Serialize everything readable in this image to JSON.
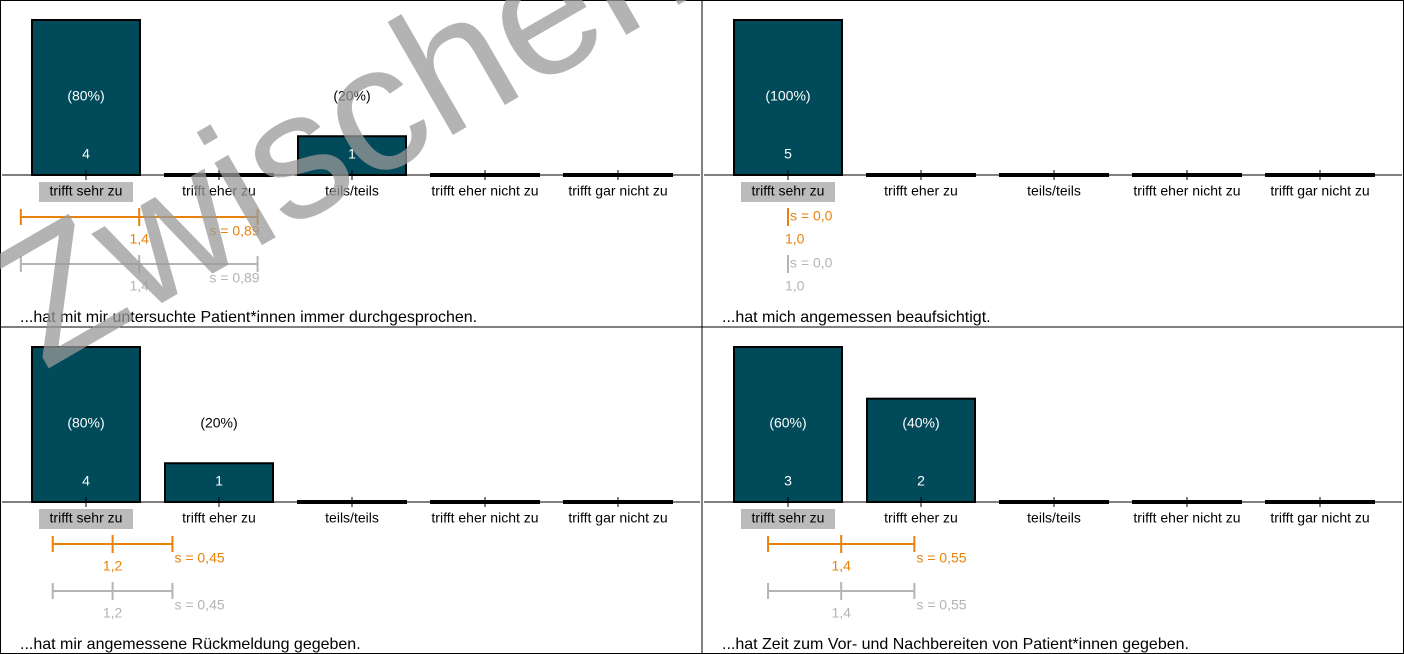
{
  "watermark": "Zwischen",
  "chart_data": [
    {
      "type": "bar",
      "title": "...hat mit mir untersuchte Patient*innen immer durchgesprochen.",
      "categories": [
        "trifft sehr zu",
        "trifft eher zu",
        "teils/teils",
        "trifft eher nicht zu",
        "trifft gar nicht zu"
      ],
      "values": [
        4,
        0,
        1,
        0,
        0
      ],
      "percent_labels": [
        "(80%)",
        null,
        "(20%)",
        null,
        null
      ],
      "ylim": [
        0,
        4
      ],
      "color": "#004a5a",
      "mean": {
        "value": 1.4,
        "label": "1,4"
      },
      "sd": {
        "value": 0.89,
        "label": "s = 0,89"
      },
      "comparison_mean": {
        "value": 1.4,
        "label": "1,4"
      },
      "comparison_sd": {
        "value": 0.89,
        "label": "s = 0,89"
      }
    },
    {
      "type": "bar",
      "title": "...hat mich angemessen beaufsichtigt.",
      "categories": [
        "trifft sehr zu",
        "trifft eher zu",
        "teils/teils",
        "trifft eher nicht zu",
        "trifft gar nicht zu"
      ],
      "values": [
        5,
        0,
        0,
        0,
        0
      ],
      "percent_labels": [
        "(100%)",
        null,
        null,
        null,
        null
      ],
      "ylim": [
        0,
        5
      ],
      "color": "#004a5a",
      "mean": {
        "value": 1.0,
        "label": "1,0"
      },
      "sd": {
        "value": 0.0,
        "label": "s = 0,0"
      },
      "comparison_mean": {
        "value": 1.0,
        "label": "1,0"
      },
      "comparison_sd": {
        "value": 0.0,
        "label": "s = 0,0"
      }
    },
    {
      "type": "bar",
      "title": "...hat mir angemessene Rückmeldung gegeben.",
      "categories": [
        "trifft sehr zu",
        "trifft eher zu",
        "teils/teils",
        "trifft eher nicht zu",
        "trifft gar nicht zu"
      ],
      "values": [
        4,
        1,
        0,
        0,
        0
      ],
      "percent_labels": [
        "(80%)",
        "(20%)",
        null,
        null,
        null
      ],
      "ylim": [
        0,
        4
      ],
      "color": "#004a5a",
      "mean": {
        "value": 1.2,
        "label": "1,2"
      },
      "sd": {
        "value": 0.45,
        "label": "s = 0,45"
      },
      "comparison_mean": {
        "value": 1.2,
        "label": "1,2"
      },
      "comparison_sd": {
        "value": 0.45,
        "label": "s = 0,45"
      }
    },
    {
      "type": "bar",
      "title": "...hat Zeit zum Vor- und Nachbereiten von Patient*innen gegeben.",
      "categories": [
        "trifft sehr zu",
        "trifft eher zu",
        "teils/teils",
        "trifft eher nicht zu",
        "trifft gar nicht zu"
      ],
      "values": [
        3,
        2,
        0,
        0,
        0
      ],
      "percent_labels": [
        "(60%)",
        "(40%)",
        null,
        null,
        null
      ],
      "ylim": [
        0,
        3
      ],
      "color": "#004a5a",
      "mean": {
        "value": 1.4,
        "label": "1,4"
      },
      "sd": {
        "value": 0.55,
        "label": "s = 0,55"
      },
      "comparison_mean": {
        "value": 1.4,
        "label": "1,4"
      },
      "comparison_sd": {
        "value": 0.55,
        "label": "s = 0,55"
      }
    }
  ]
}
